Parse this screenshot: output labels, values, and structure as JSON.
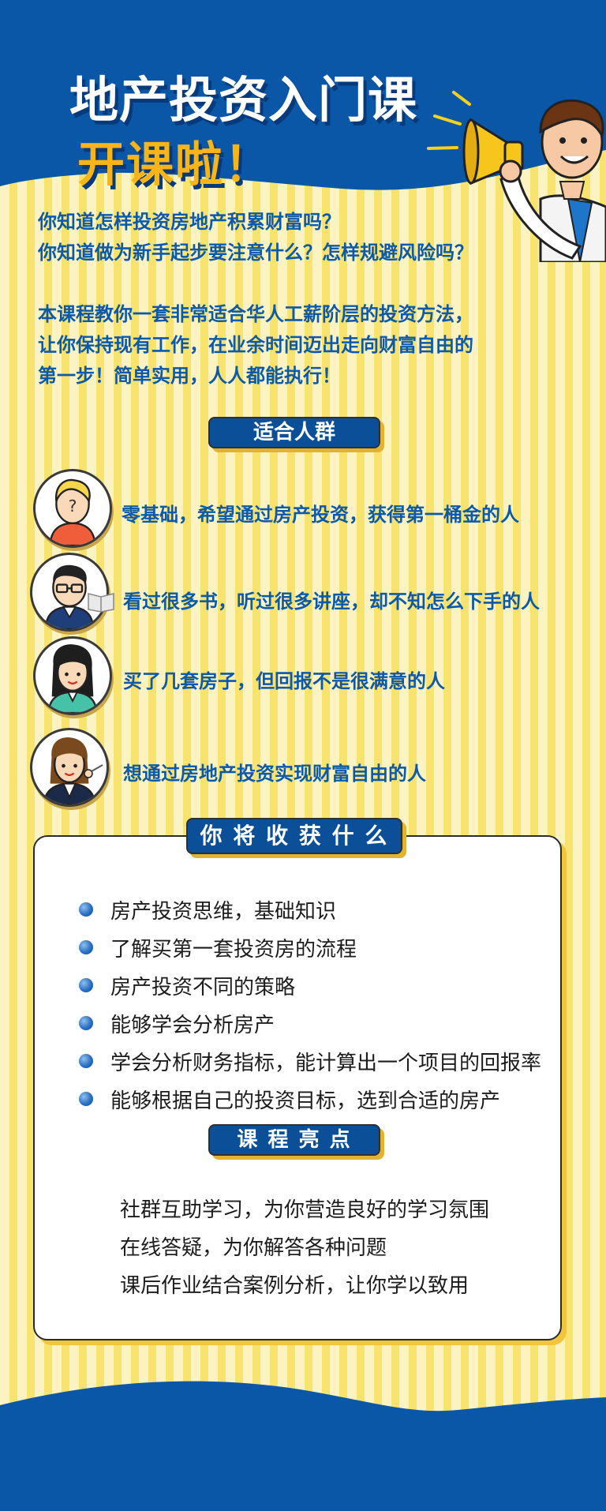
{
  "hero": {
    "title_line1": "地产投资入门课",
    "title_line2": "开课啦！"
  },
  "intro": {
    "questions": [
      "你知道怎样投资房地产积累财富吗？",
      "你知道做为新手起步要注意什么？怎样规避风险吗？"
    ],
    "description": [
      "本课程教你一套非常适合华人工薪阶层的投资方法，",
      "让你保持现有工作，在业余时间迈出走向财富自由的",
      "第一步！简单实用，人人都能执行！"
    ]
  },
  "audience": {
    "heading": "适合人群",
    "items": [
      {
        "text": "零基础，希望通过房产投资，获得第一桶金的人",
        "icon": "question-face-icon"
      },
      {
        "text": "看过很多书，听过很多讲座，却不知怎么下手的人",
        "icon": "glasses-man-icon"
      },
      {
        "text": "买了几套房子，但回报不是很满意的人",
        "icon": "woman-icon"
      },
      {
        "text": "想通过房地产投资实现财富自由的人",
        "icon": "businesswoman-icon"
      }
    ]
  },
  "benefits": {
    "heading": "你 将 收 获 什 么",
    "items": [
      "房产投资思维，基础知识",
      "了解买第一套投资房的流程",
      "房产投资不同的策略",
      "能够学会分析房产",
      "学会分析财务指标，能计算出一个项目的回报率",
      "能够根据自己的投资目标，选到合适的房产"
    ]
  },
  "highlights": {
    "heading": "课 程 亮 点",
    "items": [
      "社群互助学习，为你营造良好的学习氛围",
      "在线答疑，为你解答各种问题",
      "课后作业结合案例分析，让你学以致用"
    ]
  },
  "colors": {
    "navy": "#0b57a7",
    "accent_yellow": "#f9b418",
    "text_blue": "#0b59a8",
    "stripe_light": "#fbf3c2",
    "stripe_dark": "#f7e36e"
  }
}
